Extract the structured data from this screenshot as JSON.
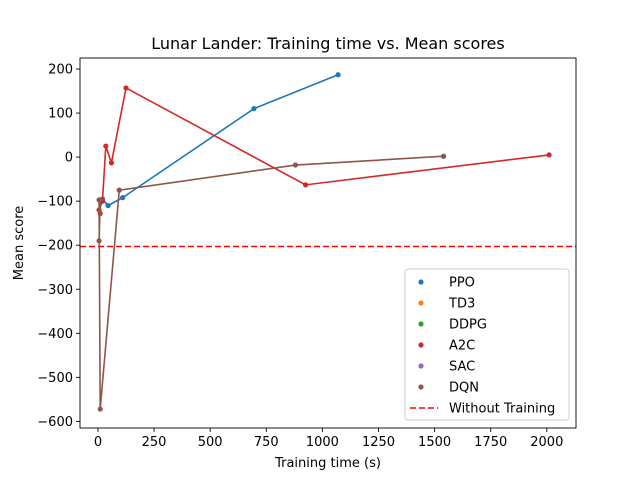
{
  "chart_data": {
    "type": "line",
    "title": "Lunar Lander: Training time vs. Mean scores",
    "xlabel": "Training time (s)",
    "ylabel": "Mean score",
    "xlim": [
      -80,
      2130
    ],
    "ylim": [
      -615,
      225
    ],
    "xticks": [
      0,
      250,
      500,
      750,
      1000,
      1250,
      1500,
      1750,
      2000
    ],
    "yticks": [
      -600,
      -500,
      -400,
      -300,
      -200,
      -100,
      0,
      100,
      200
    ],
    "grid": false,
    "legend_position": "lower-right",
    "series": [
      {
        "name": "PPO",
        "color": "#1f77b4",
        "points": [
          [
            20,
            -95
          ],
          [
            45,
            -110
          ],
          [
            110,
            -92
          ],
          [
            695,
            110
          ],
          [
            1070,
            187
          ]
        ]
      },
      {
        "name": "TD3",
        "color": "#ff7f0e",
        "points": []
      },
      {
        "name": "DDPG",
        "color": "#2ca02c",
        "points": []
      },
      {
        "name": "A2C",
        "color": "#d62728",
        "points": [
          [
            10,
            -128
          ],
          [
            5,
            -120
          ],
          [
            20,
            -100
          ],
          [
            35,
            25
          ],
          [
            60,
            -13
          ],
          [
            125,
            157
          ],
          [
            925,
            -63
          ],
          [
            2010,
            5
          ]
        ]
      },
      {
        "name": "SAC",
        "color": "#9467bd",
        "points": []
      },
      {
        "name": "DQN",
        "color": "#8c564b",
        "points": [
          [
            5,
            -190
          ],
          [
            10,
            -98
          ],
          [
            5,
            -97
          ],
          [
            10,
            -572
          ],
          [
            95,
            -75
          ],
          [
            880,
            -18
          ],
          [
            1540,
            2
          ]
        ]
      }
    ],
    "reference_lines": [
      {
        "name": "Without Training",
        "y": -203,
        "color": "#ff0000",
        "style": "dashed"
      }
    ]
  }
}
